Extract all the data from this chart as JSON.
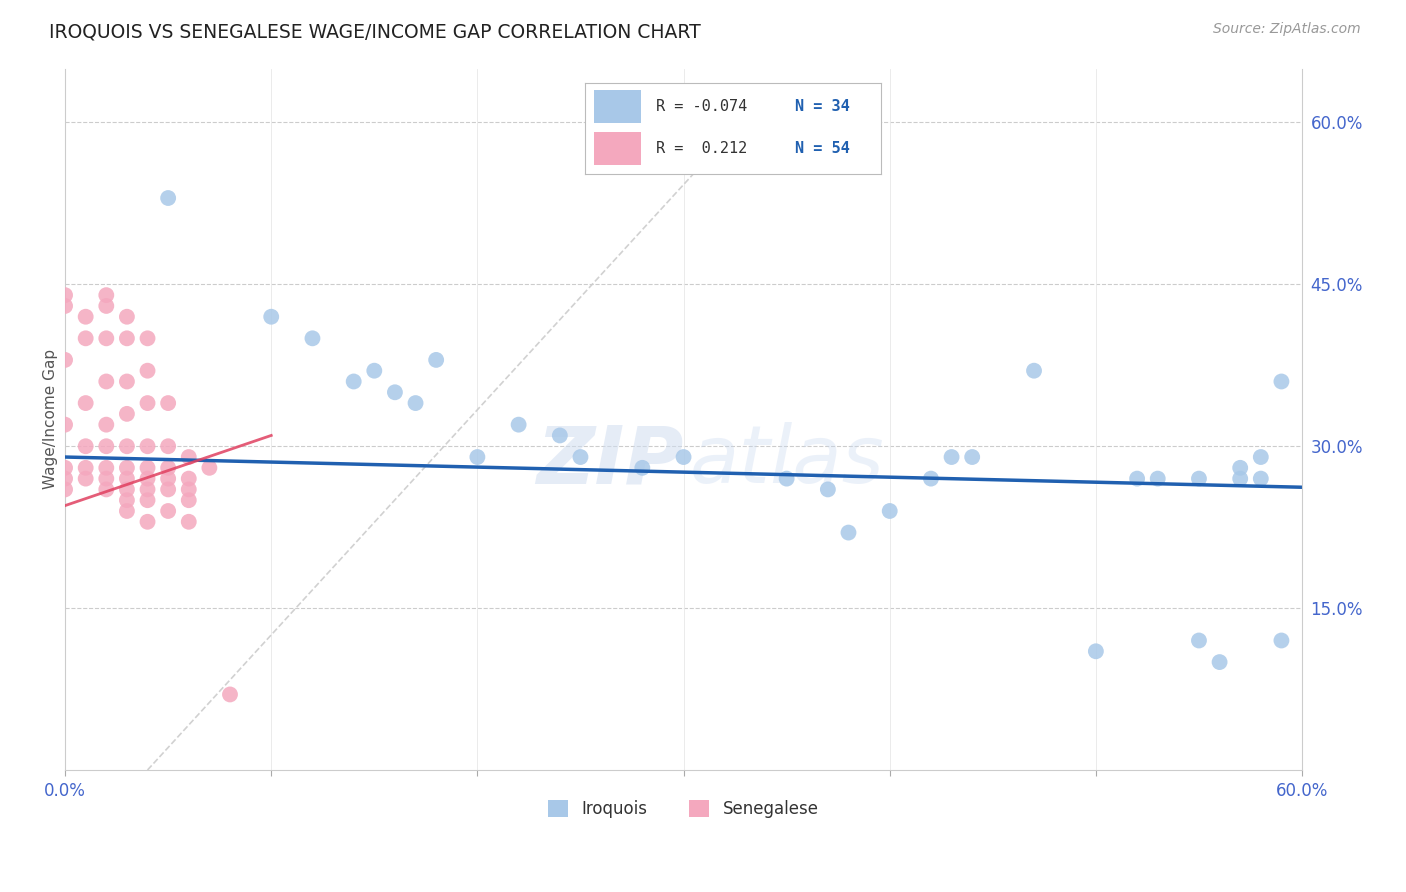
{
  "title": "IROQUOIS VS SENEGALESE WAGE/INCOME GAP CORRELATION CHART",
  "source": "Source: ZipAtlas.com",
  "ylabel": "Wage/Income Gap",
  "xlim": [
    0.0,
    0.6
  ],
  "ylim": [
    0.0,
    0.65
  ],
  "yticks_right": [
    0.15,
    0.3,
    0.45,
    0.6
  ],
  "ytick_labels_right": [
    "15.0%",
    "30.0%",
    "45.0%",
    "60.0%"
  ],
  "iroquois_color": "#a8c8e8",
  "senegalese_color": "#f4a8be",
  "iroquois_line_color": "#2060b0",
  "senegalese_line_color": "#e04060",
  "legend_R_iroquois": "-0.074",
  "legend_N_iroquois": "34",
  "legend_R_senegalese": "0.212",
  "legend_N_senegalese": "54",
  "iroquois_x": [
    0.05,
    0.1,
    0.12,
    0.14,
    0.15,
    0.16,
    0.17,
    0.18,
    0.2,
    0.22,
    0.24,
    0.25,
    0.28,
    0.3,
    0.35,
    0.37,
    0.38,
    0.4,
    0.42,
    0.43,
    0.44,
    0.47,
    0.5,
    0.52,
    0.53,
    0.55,
    0.55,
    0.56,
    0.57,
    0.57,
    0.58,
    0.58,
    0.59,
    0.59
  ],
  "iroquois_y": [
    0.53,
    0.42,
    0.4,
    0.36,
    0.37,
    0.35,
    0.34,
    0.38,
    0.29,
    0.32,
    0.31,
    0.29,
    0.28,
    0.29,
    0.27,
    0.26,
    0.22,
    0.24,
    0.27,
    0.29,
    0.29,
    0.37,
    0.11,
    0.27,
    0.27,
    0.12,
    0.27,
    0.1,
    0.28,
    0.27,
    0.29,
    0.27,
    0.12,
    0.36
  ],
  "senegalese_x": [
    0.0,
    0.0,
    0.0,
    0.0,
    0.0,
    0.0,
    0.0,
    0.01,
    0.01,
    0.01,
    0.01,
    0.01,
    0.01,
    0.02,
    0.02,
    0.02,
    0.02,
    0.02,
    0.02,
    0.02,
    0.02,
    0.02,
    0.03,
    0.03,
    0.03,
    0.03,
    0.03,
    0.03,
    0.03,
    0.03,
    0.03,
    0.03,
    0.04,
    0.04,
    0.04,
    0.04,
    0.04,
    0.04,
    0.04,
    0.04,
    0.04,
    0.05,
    0.05,
    0.05,
    0.05,
    0.05,
    0.05,
    0.06,
    0.06,
    0.06,
    0.06,
    0.06,
    0.07,
    0.08
  ],
  "senegalese_y": [
    0.44,
    0.43,
    0.38,
    0.32,
    0.28,
    0.27,
    0.26,
    0.42,
    0.4,
    0.34,
    0.3,
    0.28,
    0.27,
    0.44,
    0.43,
    0.4,
    0.36,
    0.32,
    0.3,
    0.28,
    0.27,
    0.26,
    0.42,
    0.4,
    0.36,
    0.33,
    0.3,
    0.28,
    0.27,
    0.26,
    0.25,
    0.24,
    0.4,
    0.37,
    0.34,
    0.3,
    0.28,
    0.27,
    0.26,
    0.25,
    0.23,
    0.34,
    0.3,
    0.28,
    0.27,
    0.26,
    0.24,
    0.29,
    0.27,
    0.26,
    0.25,
    0.23,
    0.28,
    0.07
  ],
  "watermark_zip": "ZIP",
  "watermark_atlas": "atlas",
  "background_color": "#ffffff",
  "grid_color": "#cccccc",
  "diag_line_x": [
    0.04,
    0.33
  ],
  "diag_line_y": [
    0.0,
    0.605
  ],
  "iroquois_line_x0": 0.0,
  "iroquois_line_x1": 0.6,
  "iroquois_line_y0": 0.29,
  "iroquois_line_y1": 0.262,
  "senegalese_line_x0": 0.0,
  "senegalese_line_x1": 0.1,
  "senegalese_line_y0": 0.245,
  "senegalese_line_y1": 0.31
}
